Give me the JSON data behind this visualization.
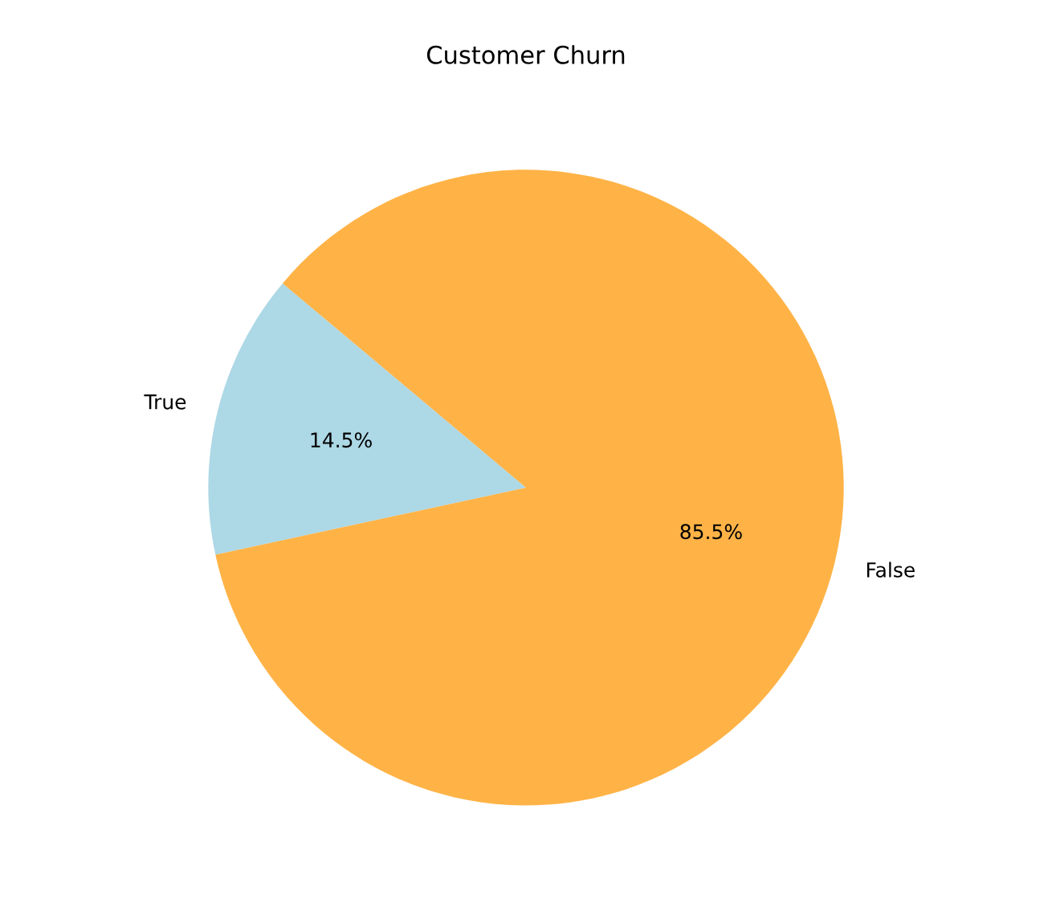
{
  "chart_data": {
    "type": "pie",
    "title": "Customer Churn",
    "categories": [
      "True",
      "False"
    ],
    "values": [
      14.5,
      85.5
    ],
    "value_labels": [
      "14.5%",
      "85.5%"
    ],
    "colors": [
      "#add8e6",
      "#ffb347"
    ]
  }
}
